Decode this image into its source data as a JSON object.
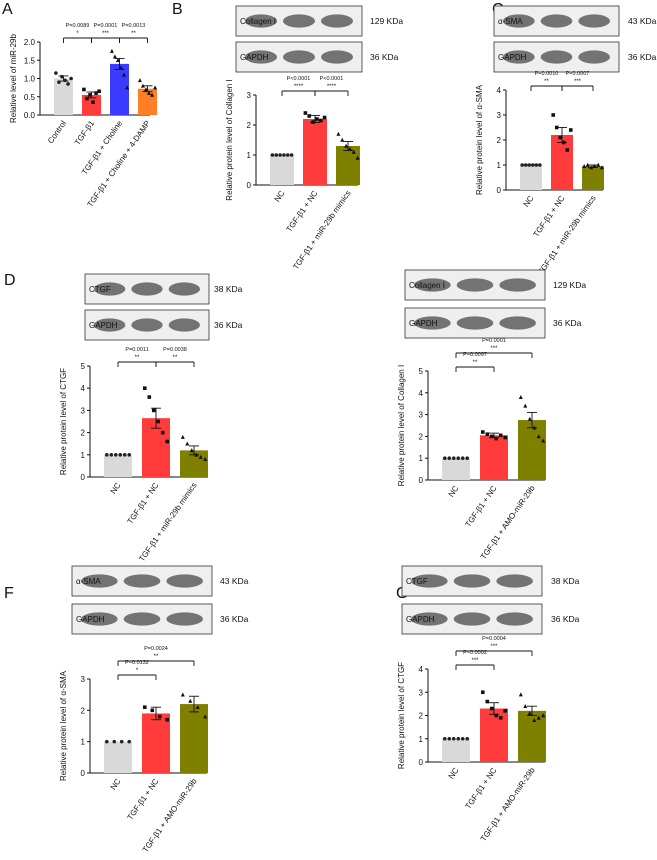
{
  "colors": {
    "nc": "#d9d9d9",
    "tgf": "#ff3b3b",
    "choline": "#3b3bff",
    "dampc": "#ff7f27",
    "olive": "#7f7f00"
  },
  "chart_data": [
    {
      "panel": "A",
      "type": "bar",
      "ylabel": "Relative level of miR-29b",
      "ylim": [
        0,
        2.0
      ],
      "yticks": [
        "0.0",
        "0.5",
        "1.0",
        "1.5",
        "2.0"
      ],
      "categories": [
        "Control",
        "TGF-β1",
        "TGF-β1 + Choline",
        "TGF-β1 + Choline + 4-DAMP"
      ],
      "values": [
        1.0,
        0.55,
        1.4,
        0.72
      ],
      "errors": [
        0.07,
        0.08,
        0.15,
        0.08
      ],
      "colors": [
        "#d9d9d9",
        "#ff3b3b",
        "#3b3bff",
        "#ff7f27"
      ],
      "points": [
        [
          1.15,
          0.9,
          1.05,
          0.95,
          0.85,
          1.0
        ],
        [
          0.7,
          0.45,
          0.55,
          0.35,
          0.6,
          0.65
        ],
        [
          1.75,
          1.6,
          1.5,
          1.3,
          1.1,
          0.75
        ],
        [
          0.95,
          0.8,
          0.7,
          0.6,
          0.55,
          0.75
        ]
      ],
      "brackets": [
        {
          "from": 0,
          "to": 1,
          "p": "P=0.0089",
          "star": "*",
          "level": 0
        },
        {
          "from": 1,
          "to": 2,
          "p": "P=0.0001",
          "star": "***",
          "level": 0
        },
        {
          "from": 2,
          "to": 3,
          "p": "P=0.0013",
          "star": "**",
          "level": 0
        }
      ]
    },
    {
      "panel": "B",
      "type": "bar",
      "ylabel": "Relative protein level of Collagen I",
      "ylim": [
        0,
        3
      ],
      "yticks": [
        "0",
        "1",
        "2",
        "3"
      ],
      "categories": [
        "NC",
        "TGF-β1 + NC",
        "TGF-β1 + miR-29b mimics"
      ],
      "values": [
        1.0,
        2.2,
        1.3
      ],
      "errors": [
        0,
        0.12,
        0.15
      ],
      "colors": [
        "#d9d9d9",
        "#ff3b3b",
        "#7f7f00"
      ],
      "points": [
        [
          1,
          1,
          1,
          1,
          1,
          1
        ],
        [
          2.4,
          2.3,
          2.1,
          2.2,
          2.15,
          2.25
        ],
        [
          1.7,
          1.5,
          1.3,
          1.2,
          1.1,
          0.9
        ]
      ],
      "brackets": [
        {
          "from": 0,
          "to": 1,
          "p": "P<0.0001",
          "star": "****",
          "level": 0
        },
        {
          "from": 1,
          "to": 2,
          "p": "P<0.0001",
          "star": "****",
          "level": 0
        }
      ],
      "blot": {
        "rows": [
          {
            "label": "Collagen I",
            "kda": "129 KDa"
          },
          {
            "label": "GAPDH",
            "kda": "36 KDa"
          }
        ]
      }
    },
    {
      "panel": "C",
      "type": "bar",
      "ylabel": "Relative protein level of α-SMA",
      "ylim": [
        0,
        4
      ],
      "yticks": [
        "0",
        "1",
        "2",
        "3",
        "4"
      ],
      "categories": [
        "NC",
        "TGF-β1 + NC",
        "TGF-β1 + miR-29b mimics"
      ],
      "values": [
        1.0,
        2.2,
        0.95
      ],
      "errors": [
        0,
        0.3,
        0.05
      ],
      "colors": [
        "#d9d9d9",
        "#ff3b3b",
        "#7f7f00"
      ],
      "points": [
        [
          1,
          1,
          1,
          1,
          1,
          1
        ],
        [
          3.0,
          2.5,
          2.1,
          1.9,
          1.6,
          2.4
        ],
        [
          0.95,
          1.0,
          0.9,
          0.95,
          1.0,
          0.9
        ]
      ],
      "brackets": [
        {
          "from": 0,
          "to": 1,
          "p": "P=0.0010",
          "star": "**",
          "level": 0
        },
        {
          "from": 1,
          "to": 2,
          "p": "P=0.0007",
          "star": "***",
          "level": 0
        }
      ],
      "blot": {
        "rows": [
          {
            "label": "α-SMA",
            "kda": "43 KDa"
          },
          {
            "label": "GAPDH",
            "kda": "36 KDa"
          }
        ]
      }
    },
    {
      "panel": "D",
      "type": "bar",
      "ylabel": "Relative protein level of CTGF",
      "ylim": [
        0,
        5
      ],
      "yticks": [
        "0",
        "1",
        "2",
        "3",
        "4",
        "5"
      ],
      "categories": [
        "NC",
        "TGF-β1 + NC",
        "TGF-β1 + miR-29b mimics"
      ],
      "values": [
        1.0,
        2.65,
        1.2
      ],
      "errors": [
        0,
        0.45,
        0.2
      ],
      "colors": [
        "#d9d9d9",
        "#ff3b3b",
        "#7f7f00"
      ],
      "points": [
        [
          1,
          1,
          1,
          1,
          1,
          1
        ],
        [
          4.0,
          3.6,
          3.0,
          2.5,
          2.0,
          1.6
        ],
        [
          1.8,
          1.5,
          1.2,
          1.0,
          0.9,
          0.8
        ]
      ],
      "brackets": [
        {
          "from": 0,
          "to": 1,
          "p": "P=0.0011",
          "star": "**",
          "level": 0
        },
        {
          "from": 1,
          "to": 2,
          "p": "P=0.0038",
          "star": "**",
          "level": 0
        }
      ],
      "blot": {
        "rows": [
          {
            "label": "CTGF",
            "kda": "38 KDa"
          },
          {
            "label": "GAPDH",
            "kda": "36 KDa"
          }
        ]
      }
    },
    {
      "panel": "E",
      "type": "bar",
      "ylabel": "Relative protein level of Collagen I",
      "ylim": [
        0,
        5
      ],
      "yticks": [
        "0",
        "1",
        "2",
        "3",
        "4",
        "5"
      ],
      "categories": [
        "NC",
        "TGF-β1 + NC",
        "TGF-β1 + AMO-miR-29b"
      ],
      "values": [
        1.0,
        2.05,
        2.75
      ],
      "errors": [
        0,
        0.1,
        0.35
      ],
      "colors": [
        "#d9d9d9",
        "#ff3b3b",
        "#7f7f00"
      ],
      "points": [
        [
          1,
          1,
          1,
          1,
          1,
          1
        ],
        [
          2.2,
          2.1,
          2.0,
          1.9,
          2.05,
          1.95
        ],
        [
          3.8,
          3.4,
          2.8,
          2.4,
          2.0,
          1.8
        ]
      ],
      "brackets": [
        {
          "from": 0,
          "to": 1,
          "p": "P=0.0097",
          "star": "**",
          "level": 0
        },
        {
          "from": 0,
          "to": 2,
          "p": "P=0.0001",
          "star": "***",
          "level": 1
        }
      ],
      "blot": {
        "rows": [
          {
            "label": "Collagen I",
            "kda": "129 KDa"
          },
          {
            "label": "GAPDH",
            "kda": "36 KDa"
          }
        ]
      }
    },
    {
      "panel": "F",
      "type": "bar",
      "ylabel": "Relative protein level of α-SMA",
      "ylim": [
        0,
        3
      ],
      "yticks": [
        "0",
        "1",
        "2",
        "3"
      ],
      "categories": [
        "NC",
        "TGF-β1 + NC",
        "TGF-β1 + AMO-miR-29b"
      ],
      "values": [
        1.0,
        1.9,
        2.2
      ],
      "errors": [
        0,
        0.2,
        0.25
      ],
      "colors": [
        "#d9d9d9",
        "#ff3b3b",
        "#7f7f00"
      ],
      "points": [
        [
          1,
          1,
          1,
          1
        ],
        [
          2.1,
          2.0,
          1.8,
          1.7
        ],
        [
          2.5,
          2.3,
          2.1,
          1.8
        ]
      ],
      "brackets": [
        {
          "from": 0,
          "to": 1,
          "p": "P=0.0132",
          "star": "*",
          "level": 0
        },
        {
          "from": 0,
          "to": 2,
          "p": "P=0.0024",
          "star": "**",
          "level": 1
        }
      ],
      "blot": {
        "rows": [
          {
            "label": "α-SMA",
            "kda": "43 KDa"
          },
          {
            "label": "GAPDH",
            "kda": "36 KDa"
          }
        ]
      }
    },
    {
      "panel": "G",
      "type": "bar",
      "ylabel": "Relative protein level of CTGF",
      "ylim": [
        0,
        4
      ],
      "yticks": [
        "0",
        "1",
        "2",
        "3",
        "4"
      ],
      "categories": [
        "NC",
        "TGF-β1 + NC",
        "TGF-β1 + AMO-miR-29b"
      ],
      "values": [
        1.0,
        2.3,
        2.2
      ],
      "errors": [
        0,
        0.25,
        0.2
      ],
      "colors": [
        "#d9d9d9",
        "#ff3b3b",
        "#7f7f00"
      ],
      "points": [
        [
          1,
          1,
          1,
          1,
          1,
          1
        ],
        [
          3.0,
          2.6,
          2.3,
          2.0,
          1.9,
          2.2
        ],
        [
          2.9,
          2.4,
          2.1,
          1.8,
          1.9,
          2.0
        ]
      ],
      "brackets": [
        {
          "from": 0,
          "to": 1,
          "p": "P=0.0002",
          "star": "***",
          "level": 0
        },
        {
          "from": 0,
          "to": 2,
          "p": "P=0.0004",
          "star": "***",
          "level": 1
        }
      ],
      "blot": {
        "rows": [
          {
            "label": "CTGF",
            "kda": "38 KDa"
          },
          {
            "label": "GAPDH",
            "kda": "36 KDa"
          }
        ]
      }
    }
  ]
}
